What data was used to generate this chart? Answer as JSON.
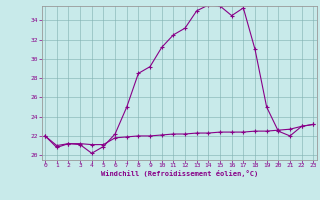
{
  "title": "",
  "xlabel": "Windchill (Refroidissement éolien,°C)",
  "hours": [
    0,
    1,
    2,
    3,
    4,
    5,
    6,
    7,
    8,
    9,
    10,
    11,
    12,
    13,
    14,
    15,
    16,
    17,
    18,
    19,
    20,
    21,
    22,
    23
  ],
  "temp": [
    22.0,
    20.8,
    21.2,
    21.1,
    20.2,
    20.9,
    22.2,
    25.0,
    28.5,
    29.2,
    31.2,
    32.5,
    33.2,
    35.0,
    35.6,
    35.5,
    34.5,
    35.3,
    31.0,
    25.0,
    22.5,
    22.0,
    23.0,
    23.2
  ],
  "windchill": [
    22.0,
    21.0,
    21.2,
    21.2,
    21.1,
    21.1,
    21.8,
    21.9,
    22.0,
    22.0,
    22.1,
    22.2,
    22.2,
    22.3,
    22.3,
    22.4,
    22.4,
    22.4,
    22.5,
    22.5,
    22.6,
    22.7,
    23.0,
    23.2
  ],
  "line_color": "#880088",
  "bg_color": "#c8eaea",
  "grid_color": "#7fb0b0",
  "ylim": [
    19.5,
    35.5
  ],
  "xlim": [
    -0.3,
    23.3
  ],
  "yticks": [
    20,
    22,
    24,
    26,
    28,
    30,
    32,
    34
  ],
  "xticks": [
    0,
    1,
    2,
    3,
    4,
    5,
    6,
    7,
    8,
    9,
    10,
    11,
    12,
    13,
    14,
    15,
    16,
    17,
    18,
    19,
    20,
    21,
    22,
    23
  ]
}
